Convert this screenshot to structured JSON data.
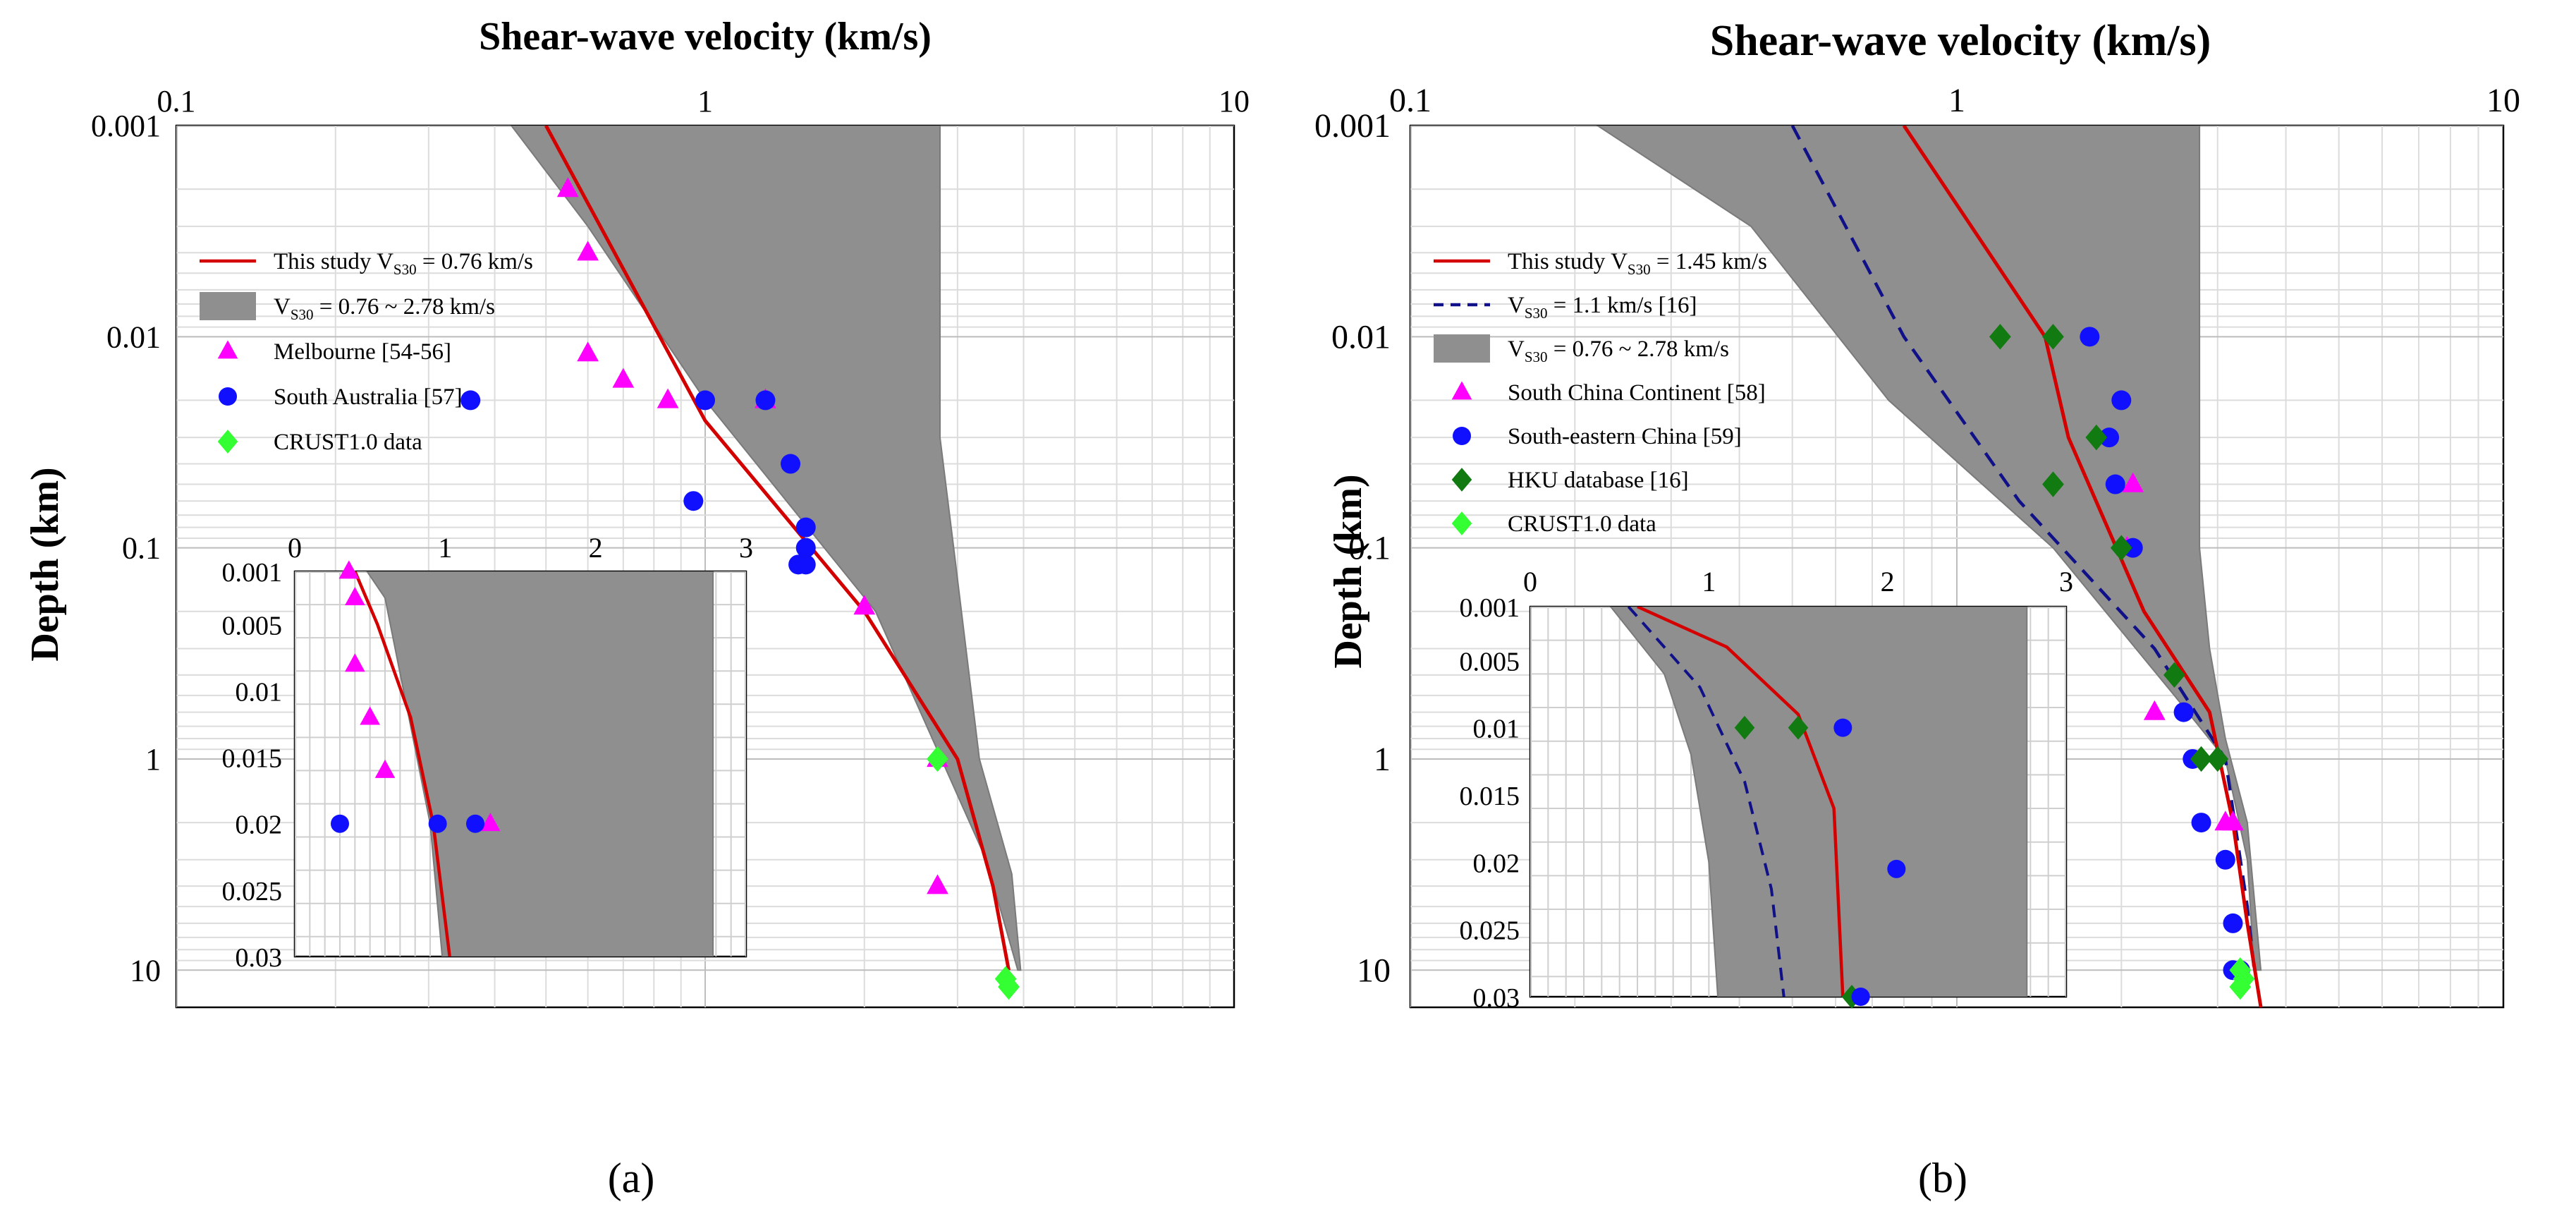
{
  "chart_data": [
    {
      "panel_label": "(a)",
      "type": "scatter",
      "x_scale": "log",
      "y_scale": "log",
      "xlabel": "Shear-wave velocity (km/s)",
      "ylabel": "Depth (km)",
      "xlim": [
        0.1,
        10
      ],
      "ylim": [
        0.001,
        15
      ],
      "x_ticks": [
        "0.1",
        "1",
        "10"
      ],
      "y_ticks": [
        "0.001",
        "0.01",
        "0.1",
        "1",
        "10"
      ],
      "legend": [
        {
          "label": "This study V",
          "sub": "S30",
          "tail": " = 0.76 km/s"
        },
        {
          "label": "V",
          "sub": "S30",
          "tail": " = 0.76 ~ 2.78 km/s"
        },
        {
          "label": "Melbourne [54-56]"
        },
        {
          "label": "South Australia [57]"
        },
        {
          "label": "CRUST1.0 data"
        }
      ],
      "band": {
        "name": "VS30 = 0.76 ~ 2.78 km/s",
        "left": [
          [
            0.43,
            0.001
          ],
          [
            0.6,
            0.003
          ],
          [
            1.0,
            0.02
          ],
          [
            2.1,
            0.2
          ],
          [
            3.4,
            3
          ],
          [
            3.9,
            10
          ]
        ],
        "right": [
          [
            2.78,
            0.001
          ],
          [
            2.78,
            0.03
          ],
          [
            2.95,
            0.1
          ],
          [
            3.3,
            1
          ],
          [
            3.8,
            3.5
          ],
          [
            3.95,
            10
          ]
        ]
      },
      "this_study": [
        [
          0.5,
          0.001
        ],
        [
          1.0,
          0.025
        ],
        [
          2.0,
          0.2
        ],
        [
          3.0,
          1.0
        ],
        [
          3.5,
          4.0
        ],
        [
          3.75,
          10
        ]
      ],
      "series": [
        {
          "name": "Melbourne [54-56]",
          "marker": "triangle",
          "color": "#ff00ff",
          "points": [
            [
              0.55,
              0.002
            ],
            [
              0.6,
              0.004
            ],
            [
              0.6,
              0.012
            ],
            [
              0.7,
              0.016
            ],
            [
              0.85,
              0.02
            ],
            [
              1.3,
              0.02
            ],
            [
              2.0,
              0.19
            ],
            [
              2.75,
              1.0
            ],
            [
              2.75,
              4.0
            ]
          ]
        },
        {
          "name": "South Australia [57]",
          "marker": "circle",
          "color": "#1010ff",
          "points": [
            [
              0.36,
              0.02
            ],
            [
              0.95,
              0.06
            ],
            [
              1.0,
              0.02
            ],
            [
              1.3,
              0.02
            ],
            [
              1.45,
              0.04
            ],
            [
              1.55,
              0.08
            ],
            [
              1.55,
              0.1
            ],
            [
              1.5,
              0.12
            ],
            [
              1.55,
              0.12
            ]
          ]
        },
        {
          "name": "CRUST1.0 data",
          "marker": "diamond",
          "color": "#33ff33",
          "points": [
            [
              2.75,
              1.0
            ],
            [
              3.7,
              11
            ],
            [
              3.75,
              12
            ]
          ]
        }
      ],
      "inset": {
        "x_scale": "linear",
        "y_scale": "linear",
        "xlim": [
          0,
          3
        ],
        "ylim": [
          0.001,
          0.03
        ],
        "x_ticks": [
          "0",
          "1",
          "2",
          "3"
        ],
        "y_ticks": [
          "0.001",
          "0.005",
          "0.01",
          "0.015",
          "0.02",
          "0.025",
          "0.03"
        ],
        "band": {
          "left": [
            [
              0.48,
              0.001
            ],
            [
              0.6,
              0.003
            ],
            [
              0.9,
              0.02
            ],
            [
              0.98,
              0.03
            ]
          ],
          "right": [
            [
              2.78,
              0.001
            ],
            [
              2.78,
              0.03
            ]
          ]
        },
        "this_study": [
          [
            0.4,
            0.001
          ],
          [
            0.55,
            0.005
          ],
          [
            0.77,
            0.012
          ],
          [
            0.92,
            0.02
          ],
          [
            1.03,
            0.03
          ]
        ],
        "points": [
          {
            "series": "Melbourne",
            "marker": "triangle",
            "color": "#ff00ff",
            "points": [
              [
                0.36,
                0.001
              ],
              [
                0.4,
                0.003
              ],
              [
                0.4,
                0.008
              ],
              [
                0.5,
                0.012
              ],
              [
                0.6,
                0.016
              ],
              [
                1.3,
                0.02
              ]
            ]
          },
          {
            "series": "South Australia",
            "marker": "circle",
            "color": "#1010ff",
            "points": [
              [
                0.3,
                0.02
              ],
              [
                0.95,
                0.02
              ],
              [
                1.2,
                0.02
              ]
            ]
          }
        ]
      }
    },
    {
      "panel_label": "(b)",
      "type": "scatter",
      "x_scale": "log",
      "y_scale": "log",
      "xlabel": "Shear-wave velocity (km/s)",
      "ylabel": "Depth (km)",
      "xlim": [
        0.1,
        10
      ],
      "ylim": [
        0.001,
        15
      ],
      "x_ticks": [
        "0.1",
        "1",
        "10"
      ],
      "y_ticks": [
        "0.001",
        "0.01",
        "0.1",
        "1",
        "10"
      ],
      "legend": [
        {
          "label": "This study V",
          "sub": "S30",
          "tail": " = 1.45 km/s"
        },
        {
          "label": "V",
          "sub": "S30",
          "tail": " = 1.1 km/s [16]"
        },
        {
          "label": "V",
          "sub": "S30",
          "tail": " = 0.76 ~ 2.78 km/s"
        },
        {
          "label": "South China Continent [58]"
        },
        {
          "label": "South-eastern China [59]"
        },
        {
          "label": "HKU database [16]"
        },
        {
          "label": "CRUST1.0 data"
        }
      ],
      "band": {
        "name": "VS30 = 0.76 ~ 2.78 km/s",
        "left": [
          [
            0.22,
            0.001
          ],
          [
            0.42,
            0.003
          ],
          [
            0.75,
            0.02
          ],
          [
            1.5,
            0.1
          ],
          [
            2.5,
            0.5
          ],
          [
            3.1,
            1
          ],
          [
            3.4,
            3
          ],
          [
            3.5,
            10
          ]
        ],
        "right": [
          [
            2.78,
            0.001
          ],
          [
            2.78,
            0.1
          ],
          [
            2.9,
            0.3
          ],
          [
            3.1,
            0.8
          ],
          [
            3.4,
            2
          ],
          [
            3.6,
            10
          ]
        ]
      },
      "this_study": [
        [
          0.8,
          0.001
        ],
        [
          1.45,
          0.01
        ],
        [
          1.6,
          0.03
        ],
        [
          2.2,
          0.2
        ],
        [
          2.9,
          0.6
        ],
        [
          3.2,
          2
        ],
        [
          3.4,
          6
        ],
        [
          3.6,
          15
        ]
      ],
      "vs30_1_1": [
        [
          0.5,
          0.001
        ],
        [
          0.8,
          0.01
        ],
        [
          1.3,
          0.06
        ],
        [
          2.3,
          0.3
        ],
        [
          3.1,
          1
        ],
        [
          3.4,
          5
        ],
        [
          3.5,
          10
        ]
      ],
      "series": [
        {
          "name": "South China Continent [58]",
          "marker": "triangle",
          "color": "#ff00ff",
          "points": [
            [
              2.1,
              0.05
            ],
            [
              2.05,
              0.1
            ],
            [
              2.3,
              0.6
            ],
            [
              3.1,
              2.0
            ],
            [
              3.2,
              2.0
            ]
          ]
        },
        {
          "name": "South-eastern China [59]",
          "marker": "circle",
          "color": "#1010ff",
          "points": [
            [
              1.75,
              0.01
            ],
            [
              2.0,
              0.02
            ],
            [
              1.9,
              0.03
            ],
            [
              1.95,
              0.05
            ],
            [
              2.1,
              0.1
            ],
            [
              2.6,
              0.6
            ],
            [
              2.7,
              1.0
            ],
            [
              2.8,
              2.0
            ],
            [
              3.1,
              3.0
            ],
            [
              3.2,
              6.0
            ],
            [
              3.2,
              10.0
            ],
            [
              3.3,
              10.0
            ]
          ]
        },
        {
          "name": "HKU database [16]",
          "marker": "diamond",
          "color": "#117a11",
          "points": [
            [
              1.2,
              0.01
            ],
            [
              1.5,
              0.01
            ],
            [
              1.8,
              0.03
            ],
            [
              1.5,
              0.05
            ],
            [
              2.0,
              0.1
            ],
            [
              2.5,
              0.4
            ],
            [
              2.8,
              1.0
            ],
            [
              3.0,
              1.0
            ]
          ]
        },
        {
          "name": "CRUST1.0 data",
          "marker": "diamond",
          "color": "#33ff33",
          "points": [
            [
              3.3,
              10
            ],
            [
              3.35,
              11
            ],
            [
              3.3,
              12
            ]
          ]
        }
      ],
      "inset": {
        "x_scale": "linear",
        "y_scale": "linear",
        "xlim": [
          0,
          3
        ],
        "ylim": [
          0.001,
          0.03
        ],
        "x_ticks": [
          "0",
          "1",
          "2",
          "3"
        ],
        "y_ticks": [
          "0.001",
          "0.005",
          "0.01",
          "0.015",
          "0.02",
          "0.025",
          "0.03"
        ],
        "band": {
          "left": [
            [
              0.45,
              0.001
            ],
            [
              0.75,
              0.006
            ],
            [
              0.9,
              0.012
            ],
            [
              1.0,
              0.02
            ],
            [
              1.05,
              0.03
            ]
          ],
          "right": [
            [
              2.78,
              0.001
            ],
            [
              2.78,
              0.03
            ]
          ]
        },
        "this_study": [
          [
            0.6,
            0.001
          ],
          [
            1.1,
            0.004
          ],
          [
            1.5,
            0.009
          ],
          [
            1.7,
            0.016
          ],
          [
            1.75,
            0.03
          ]
        ],
        "vs30_1_1": [
          [
            0.55,
            0.001
          ],
          [
            0.95,
            0.007
          ],
          [
            1.2,
            0.014
          ],
          [
            1.35,
            0.022
          ],
          [
            1.42,
            0.03
          ]
        ],
        "points": [
          {
            "series": "HKU database",
            "marker": "diamond",
            "color": "#117a11",
            "points": [
              [
                1.2,
                0.01
              ],
              [
                1.5,
                0.01
              ],
              [
                1.8,
                0.03
              ]
            ]
          },
          {
            "series": "South-eastern China",
            "marker": "circle",
            "color": "#1010ff",
            "points": [
              [
                1.75,
                0.01
              ],
              [
                2.05,
                0.0205
              ],
              [
                1.85,
                0.03
              ]
            ]
          }
        ]
      }
    }
  ]
}
